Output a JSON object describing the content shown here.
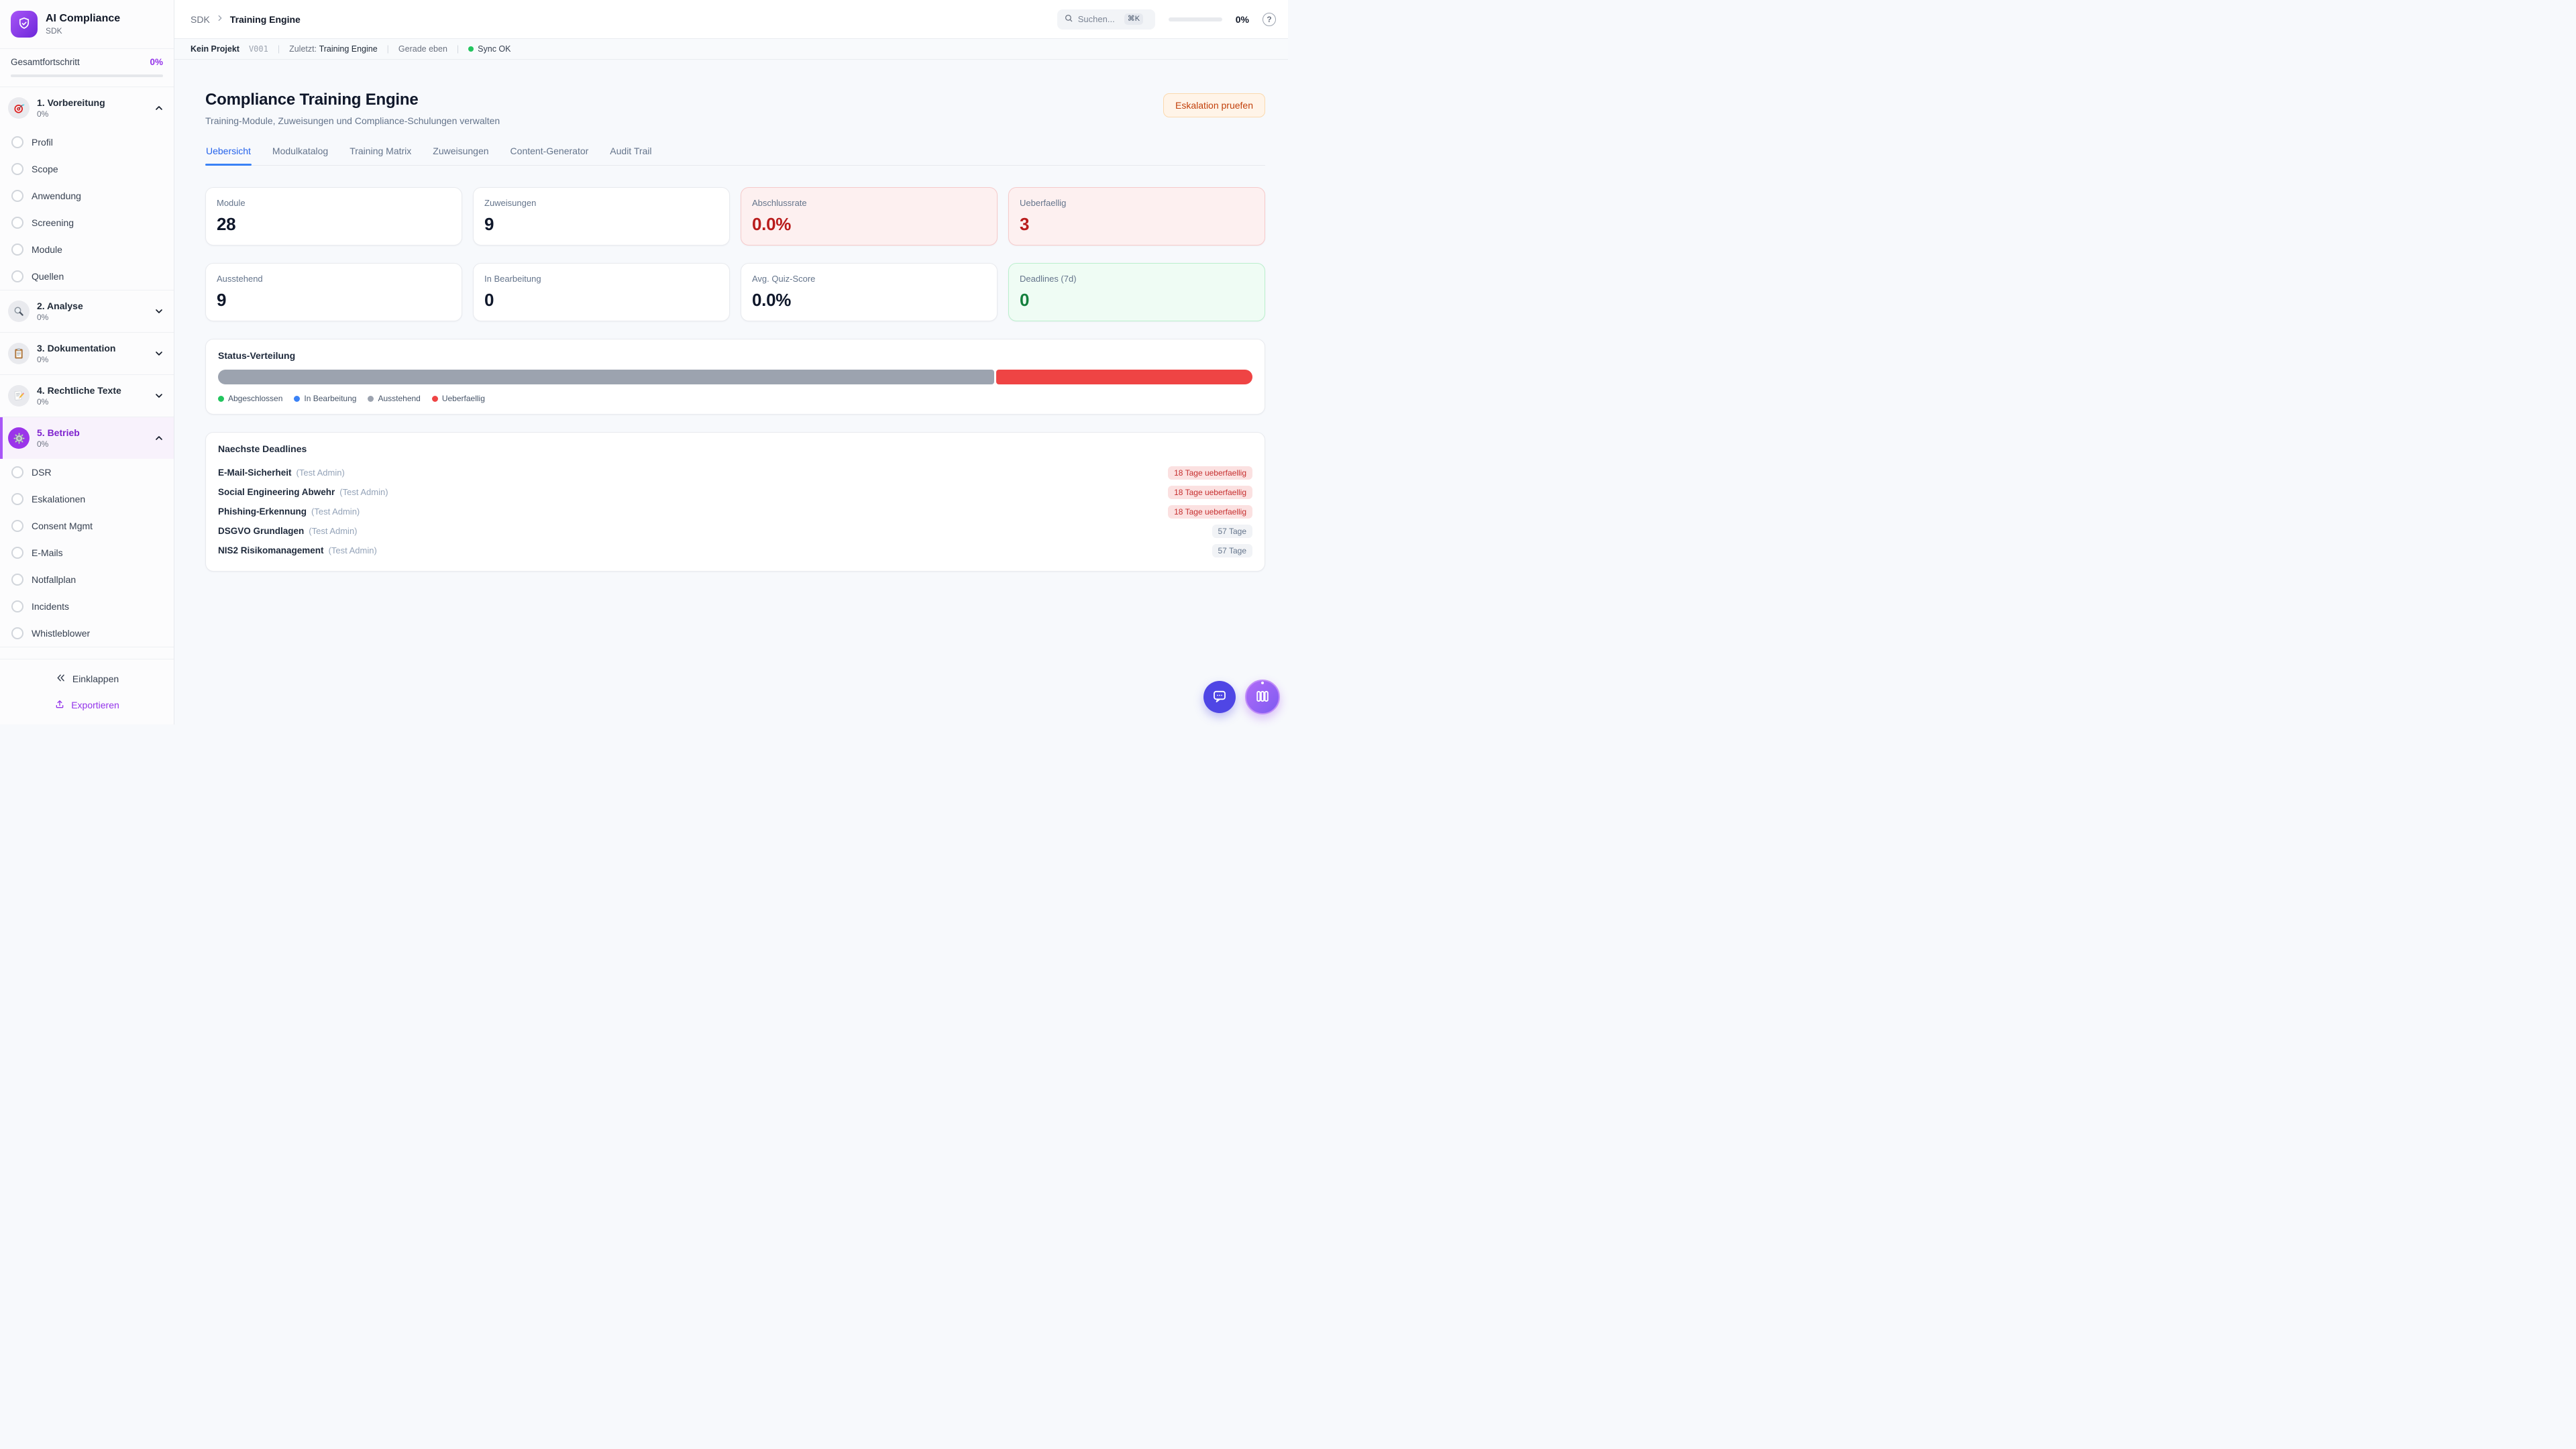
{
  "app": {
    "name": "AI Compliance",
    "subtitle": "SDK",
    "logo_icon": "shield-check-icon"
  },
  "colors": {
    "accent_purple": "#9333EA",
    "tab_active_blue": "#2563EB",
    "danger_red": "#B91C1C",
    "success_green": "#15803D",
    "warning_orange": "#C2410C",
    "sync_green": "#22C55E"
  },
  "sidebar": {
    "overall": {
      "label": "Gesamtfortschritt",
      "percent": "0%",
      "percent_value": 0
    },
    "sections": [
      {
        "title": "1. Vorbereitung",
        "progress": "0%",
        "icon": "target-icon",
        "state": "expanded",
        "items": [
          {
            "label": "Profil"
          },
          {
            "label": "Scope"
          },
          {
            "label": "Anwendung"
          },
          {
            "label": "Screening"
          },
          {
            "label": "Module"
          },
          {
            "label": "Quellen"
          }
        ]
      },
      {
        "title": "2. Analyse",
        "progress": "0%",
        "icon": "magnifier-icon",
        "state": "collapsed",
        "items": []
      },
      {
        "title": "3. Dokumentation",
        "progress": "0%",
        "icon": "clipboard-icon",
        "state": "collapsed",
        "items": []
      },
      {
        "title": "4. Rechtliche Texte",
        "progress": "0%",
        "icon": "memo-pencil-icon",
        "state": "collapsed",
        "items": []
      },
      {
        "title": "5. Betrieb",
        "progress": "0%",
        "icon": "gear-icon",
        "state": "expanded-active",
        "items": [
          {
            "label": "DSR"
          },
          {
            "label": "Eskalationen"
          },
          {
            "label": "Consent Mgmt"
          },
          {
            "label": "E-Mails"
          },
          {
            "label": "Notfallplan"
          },
          {
            "label": "Incidents"
          },
          {
            "label": "Whistleblower"
          }
        ]
      }
    ],
    "footer": {
      "collapse_label": "Einklappen",
      "export_label": "Exportieren"
    }
  },
  "topbar": {
    "breadcrumb_root": "SDK",
    "breadcrumb_current": "Training Engine",
    "search_placeholder": "Suchen...",
    "search_shortcut": "⌘K",
    "progress_label": "0%",
    "progress_value": 0
  },
  "statusbar": {
    "project": "Kein Projekt",
    "version": "V001",
    "last_label": "Zuletzt:",
    "last_value": "Training Engine",
    "updated": "Gerade eben",
    "sync_status": "Sync OK"
  },
  "page": {
    "title": "Compliance Training Engine",
    "subtitle": "Training-Module, Zuweisungen und Compliance-Schulungen verwalten",
    "action_button": "Eskalation pruefen"
  },
  "tabs": [
    {
      "label": "Uebersicht",
      "active": true
    },
    {
      "label": "Modulkatalog",
      "active": false
    },
    {
      "label": "Training Matrix",
      "active": false
    },
    {
      "label": "Zuweisungen",
      "active": false
    },
    {
      "label": "Content-Generator",
      "active": false
    },
    {
      "label": "Audit Trail",
      "active": false
    }
  ],
  "stats": [
    {
      "label": "Module",
      "value": "28",
      "variant": "default"
    },
    {
      "label": "Zuweisungen",
      "value": "9",
      "variant": "default"
    },
    {
      "label": "Abschlussrate",
      "value": "0.0%",
      "variant": "danger"
    },
    {
      "label": "Ueberfaellig",
      "value": "3",
      "variant": "danger"
    },
    {
      "label": "Ausstehend",
      "value": "9",
      "variant": "default"
    },
    {
      "label": "In Bearbeitung",
      "value": "0",
      "variant": "default"
    },
    {
      "label": "Avg. Quiz-Score",
      "value": "0.0%",
      "variant": "default"
    },
    {
      "label": "Deadlines (7d)",
      "value": "0",
      "variant": "success"
    }
  ],
  "status_distribution": {
    "title": "Status-Verteilung",
    "segments": [
      {
        "label": "Ausstehend",
        "percent": 75,
        "color": "#9CA3AF"
      },
      {
        "label": "Ueberfaellig",
        "percent": 25,
        "color": "#EF4444"
      }
    ],
    "legend": [
      {
        "label": "Abgeschlossen",
        "color": "#22C55E"
      },
      {
        "label": "In Bearbeitung",
        "color": "#3B82F6"
      },
      {
        "label": "Ausstehend",
        "color": "#9CA3AF"
      },
      {
        "label": "Ueberfaellig",
        "color": "#EF4444"
      }
    ]
  },
  "deadlines": {
    "title": "Naechste Deadlines",
    "rows": [
      {
        "name": "E-Mail-Sicherheit",
        "assignee": "(Test Admin)",
        "badge": "18 Tage ueberfaellig",
        "overdue": true
      },
      {
        "name": "Social Engineering Abwehr",
        "assignee": "(Test Admin)",
        "badge": "18 Tage ueberfaellig",
        "overdue": true
      },
      {
        "name": "Phishing-Erkennung",
        "assignee": "(Test Admin)",
        "badge": "18 Tage ueberfaellig",
        "overdue": true
      },
      {
        "name": "DSGVO Grundlagen",
        "assignee": "(Test Admin)",
        "badge": "57 Tage",
        "overdue": false
      },
      {
        "name": "NIS2 Risikomanagement",
        "assignee": "(Test Admin)",
        "badge": "57 Tage",
        "overdue": false
      }
    ]
  },
  "fabs": {
    "chat_icon": "chat-bubble-icon",
    "apps_icon": "columns-icon"
  }
}
